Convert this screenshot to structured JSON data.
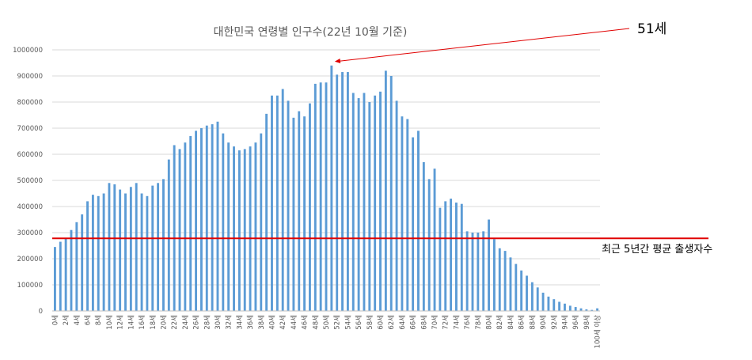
{
  "chart_data": {
    "type": "bar",
    "title": "대한민국 연령별 인구수(22년 10월 기준)",
    "ylim": [
      0,
      1000000
    ],
    "yticks": [
      "0",
      "100000",
      "200000",
      "300000",
      "400000",
      "500000",
      "600000",
      "700000",
      "800000",
      "900000",
      "1000000"
    ],
    "categories": [
      "0세",
      "1세",
      "2세",
      "3세",
      "4세",
      "5세",
      "6세",
      "7세",
      "8세",
      "9세",
      "10세",
      "11세",
      "12세",
      "13세",
      "14세",
      "15세",
      "16세",
      "17세",
      "18세",
      "19세",
      "20세",
      "21세",
      "22세",
      "23세",
      "24세",
      "25세",
      "26세",
      "27세",
      "28세",
      "29세",
      "30세",
      "31세",
      "32세",
      "33세",
      "34세",
      "35세",
      "36세",
      "37세",
      "38세",
      "39세",
      "40세",
      "41세",
      "42세",
      "43세",
      "44세",
      "45세",
      "46세",
      "47세",
      "48세",
      "49세",
      "50세",
      "51세",
      "52세",
      "53세",
      "54세",
      "55세",
      "56세",
      "57세",
      "58세",
      "59세",
      "60세",
      "61세",
      "62세",
      "63세",
      "64세",
      "65세",
      "66세",
      "67세",
      "68세",
      "69세",
      "70세",
      "71세",
      "72세",
      "73세",
      "74세",
      "75세",
      "76세",
      "77세",
      "78세",
      "79세",
      "80세",
      "81세",
      "82세",
      "83세",
      "84세",
      "85세",
      "86세",
      "87세",
      "88세",
      "89세",
      "90세",
      "91세",
      "92세",
      "93세",
      "94세",
      "95세",
      "96세",
      "97세",
      "98세",
      "99세",
      "100세 이상"
    ],
    "values": [
      245000,
      265000,
      280000,
      310000,
      340000,
      370000,
      420000,
      445000,
      440000,
      450000,
      490000,
      485000,
      465000,
      450000,
      475000,
      490000,
      450000,
      440000,
      480000,
      490000,
      505000,
      580000,
      635000,
      620000,
      645000,
      670000,
      690000,
      700000,
      710000,
      715000,
      725000,
      680000,
      645000,
      630000,
      615000,
      620000,
      630000,
      645000,
      680000,
      755000,
      825000,
      825000,
      850000,
      805000,
      740000,
      765000,
      745000,
      795000,
      870000,
      875000,
      875000,
      940000,
      905000,
      915000,
      915000,
      835000,
      815000,
      835000,
      800000,
      825000,
      840000,
      920000,
      900000,
      805000,
      745000,
      735000,
      665000,
      690000,
      570000,
      505000,
      545000,
      395000,
      420000,
      430000,
      415000,
      410000,
      305000,
      300000,
      300000,
      305000,
      350000,
      275000,
      240000,
      230000,
      205000,
      180000,
      155000,
      135000,
      110000,
      90000,
      70000,
      55000,
      45000,
      35000,
      28000,
      20000,
      15000,
      10000,
      6000,
      4000,
      10000
    ],
    "x_tick_labels_shown": [
      "0세",
      "2세",
      "4세",
      "6세",
      "8세",
      "10세",
      "12세",
      "14세",
      "16세",
      "18세",
      "20세",
      "22세",
      "24세",
      "26세",
      "28세",
      "30세",
      "32세",
      "34세",
      "36세",
      "38세",
      "40세",
      "42세",
      "44세",
      "46세",
      "48세",
      "50세",
      "52세",
      "54세",
      "56세",
      "58세",
      "60세",
      "62세",
      "64세",
      "66세",
      "68세",
      "70세",
      "72세",
      "74세",
      "76세",
      "78세",
      "80세",
      "82세",
      "84세",
      "86세",
      "88세",
      "90세",
      "92세",
      "94세",
      "96세",
      "98세",
      "100세 이상"
    ],
    "bar_color": "#5b9bd5",
    "reference_line": {
      "value": 278000,
      "label": "최근 5년간 평균 출생자수",
      "color": "#e00000"
    },
    "annotation": {
      "label": "51세",
      "points_to": "51세",
      "color": "#e00000"
    },
    "grid": true,
    "legend": "none"
  }
}
